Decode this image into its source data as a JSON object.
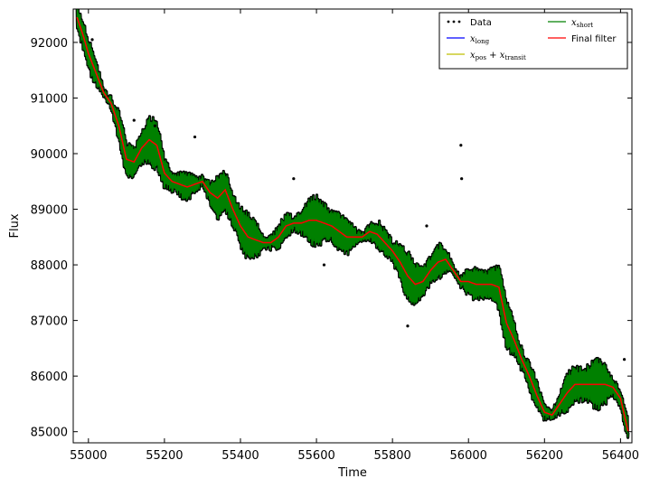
{
  "chart_data": {
    "type": "line",
    "xlabel": "Time",
    "ylabel": "Flux",
    "xlim": [
      54960,
      56430
    ],
    "ylim": [
      84800,
      92600
    ],
    "xticks": [
      55000,
      55200,
      55400,
      55600,
      55800,
      56000,
      56200,
      56400
    ],
    "yticks": [
      85000,
      86000,
      87000,
      88000,
      89000,
      90000,
      91000,
      92000
    ],
    "legend_position": "top-right",
    "series": [
      {
        "name": "Data",
        "kind": "scatter",
        "color": "#000000"
      },
      {
        "name": "x_long",
        "label_math": "x",
        "label_sub": "long",
        "kind": "line",
        "color": "#0000ff"
      },
      {
        "name": "x_pos + x_transit",
        "label_math": "x",
        "label_sub": "pos",
        "label_math2": "x",
        "label_sub2": "transit",
        "kind": "line",
        "color": "#bfbf00"
      },
      {
        "name": "x_short",
        "label_math": "x",
        "label_sub": "short",
        "kind": "line",
        "color": "#008000"
      },
      {
        "name": "Final filter",
        "kind": "line",
        "color": "#ff0000"
      }
    ],
    "trend_x": [
      54970,
      54985,
      55000,
      55020,
      55040,
      55060,
      55080,
      55100,
      55120,
      55140,
      55160,
      55180,
      55200,
      55220,
      55240,
      55260,
      55280,
      55300,
      55320,
      55340,
      55360,
      55380,
      55400,
      55420,
      55440,
      55460,
      55480,
      55500,
      55520,
      55540,
      55560,
      55580,
      55600,
      55620,
      55640,
      55660,
      55680,
      55700,
      55720,
      55740,
      55760,
      55780,
      55800,
      55820,
      55840,
      55860,
      55880,
      55900,
      55920,
      55940,
      55960,
      55980,
      56000,
      56020,
      56040,
      56060,
      56080,
      56100,
      56120,
      56140,
      56160,
      56180,
      56200,
      56220,
      56240,
      56260,
      56280,
      56300,
      56320,
      56340,
      56360,
      56380,
      56400,
      56420
    ],
    "trend_y": [
      92450,
      92150,
      91800,
      91450,
      91100,
      90900,
      90500,
      89900,
      89850,
      90100,
      90250,
      90150,
      89650,
      89500,
      89450,
      89400,
      89450,
      89500,
      89300,
      89200,
      89350,
      89000,
      88700,
      88500,
      88450,
      88400,
      88400,
      88500,
      88700,
      88750,
      88750,
      88800,
      88800,
      88750,
      88700,
      88600,
      88500,
      88500,
      88500,
      88600,
      88550,
      88400,
      88250,
      88050,
      87800,
      87650,
      87700,
      87900,
      88050,
      88100,
      87900,
      87700,
      87700,
      87650,
      87650,
      87650,
      87600,
      86950,
      86650,
      86300,
      86000,
      85650,
      85350,
      85300,
      85500,
      85700,
      85850,
      85850,
      85850,
      85850,
      85850,
      85800,
      85600,
      85000
    ],
    "outliers": [
      [
        55010,
        92050
      ],
      [
        55120,
        90600
      ],
      [
        55175,
        90500
      ],
      [
        55280,
        90300
      ],
      [
        55540,
        89550
      ],
      [
        55890,
        88700
      ],
      [
        55980,
        90150
      ],
      [
        55982,
        89550
      ],
      [
        56410,
        86300
      ],
      [
        55620,
        88000
      ],
      [
        55840,
        86900
      ]
    ]
  }
}
